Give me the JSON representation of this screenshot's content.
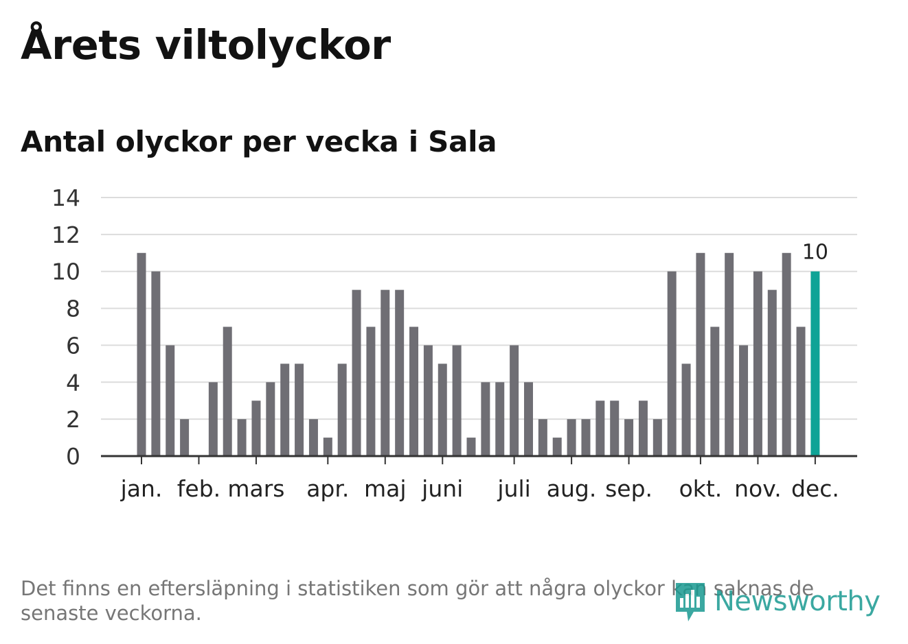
{
  "header": {
    "title": "Årets viltolyckor",
    "subtitle": "Antal olyckor per vecka i Sala"
  },
  "chart_data": {
    "type": "bar",
    "title": "Årets viltolyckor",
    "subtitle": "Antal olyckor per vecka i Sala",
    "xlabel": "",
    "ylabel": "",
    "ylim": [
      0,
      14
    ],
    "yticks": [
      0,
      2,
      4,
      6,
      8,
      10,
      12,
      14
    ],
    "grid": true,
    "month_labels": [
      "jan.",
      "feb.",
      "mars",
      "apr.",
      "maj",
      "juni",
      "juli",
      "aug.",
      "sep.",
      "okt.",
      "nov.",
      "dec."
    ],
    "month_tick_week_index": [
      0,
      4,
      8,
      13,
      17,
      21,
      26,
      30,
      34,
      39,
      43,
      47
    ],
    "values": [
      11,
      10,
      6,
      2,
      0,
      4,
      7,
      2,
      3,
      4,
      5,
      5,
      2,
      1,
      5,
      9,
      7,
      9,
      9,
      7,
      6,
      5,
      6,
      1,
      4,
      4,
      6,
      4,
      2,
      1,
      2,
      2,
      3,
      3,
      2,
      3,
      2,
      10,
      5,
      11,
      7,
      11,
      6,
      10,
      9,
      11,
      7,
      10
    ],
    "highlight_index": 47,
    "highlight_label": "10",
    "colors": {
      "bar": "#6f6e74",
      "highlight": "#0fa396",
      "grid": "#dcdcdc",
      "axis": "#333333"
    }
  },
  "footer": {
    "note": "Det finns en eftersläpning i statistiken som gör att några olyckor kan saknas de senaste veckorna.",
    "logo_text": "Newsworthy",
    "logo_icon": "newsworthy-bar-chart-icon"
  }
}
